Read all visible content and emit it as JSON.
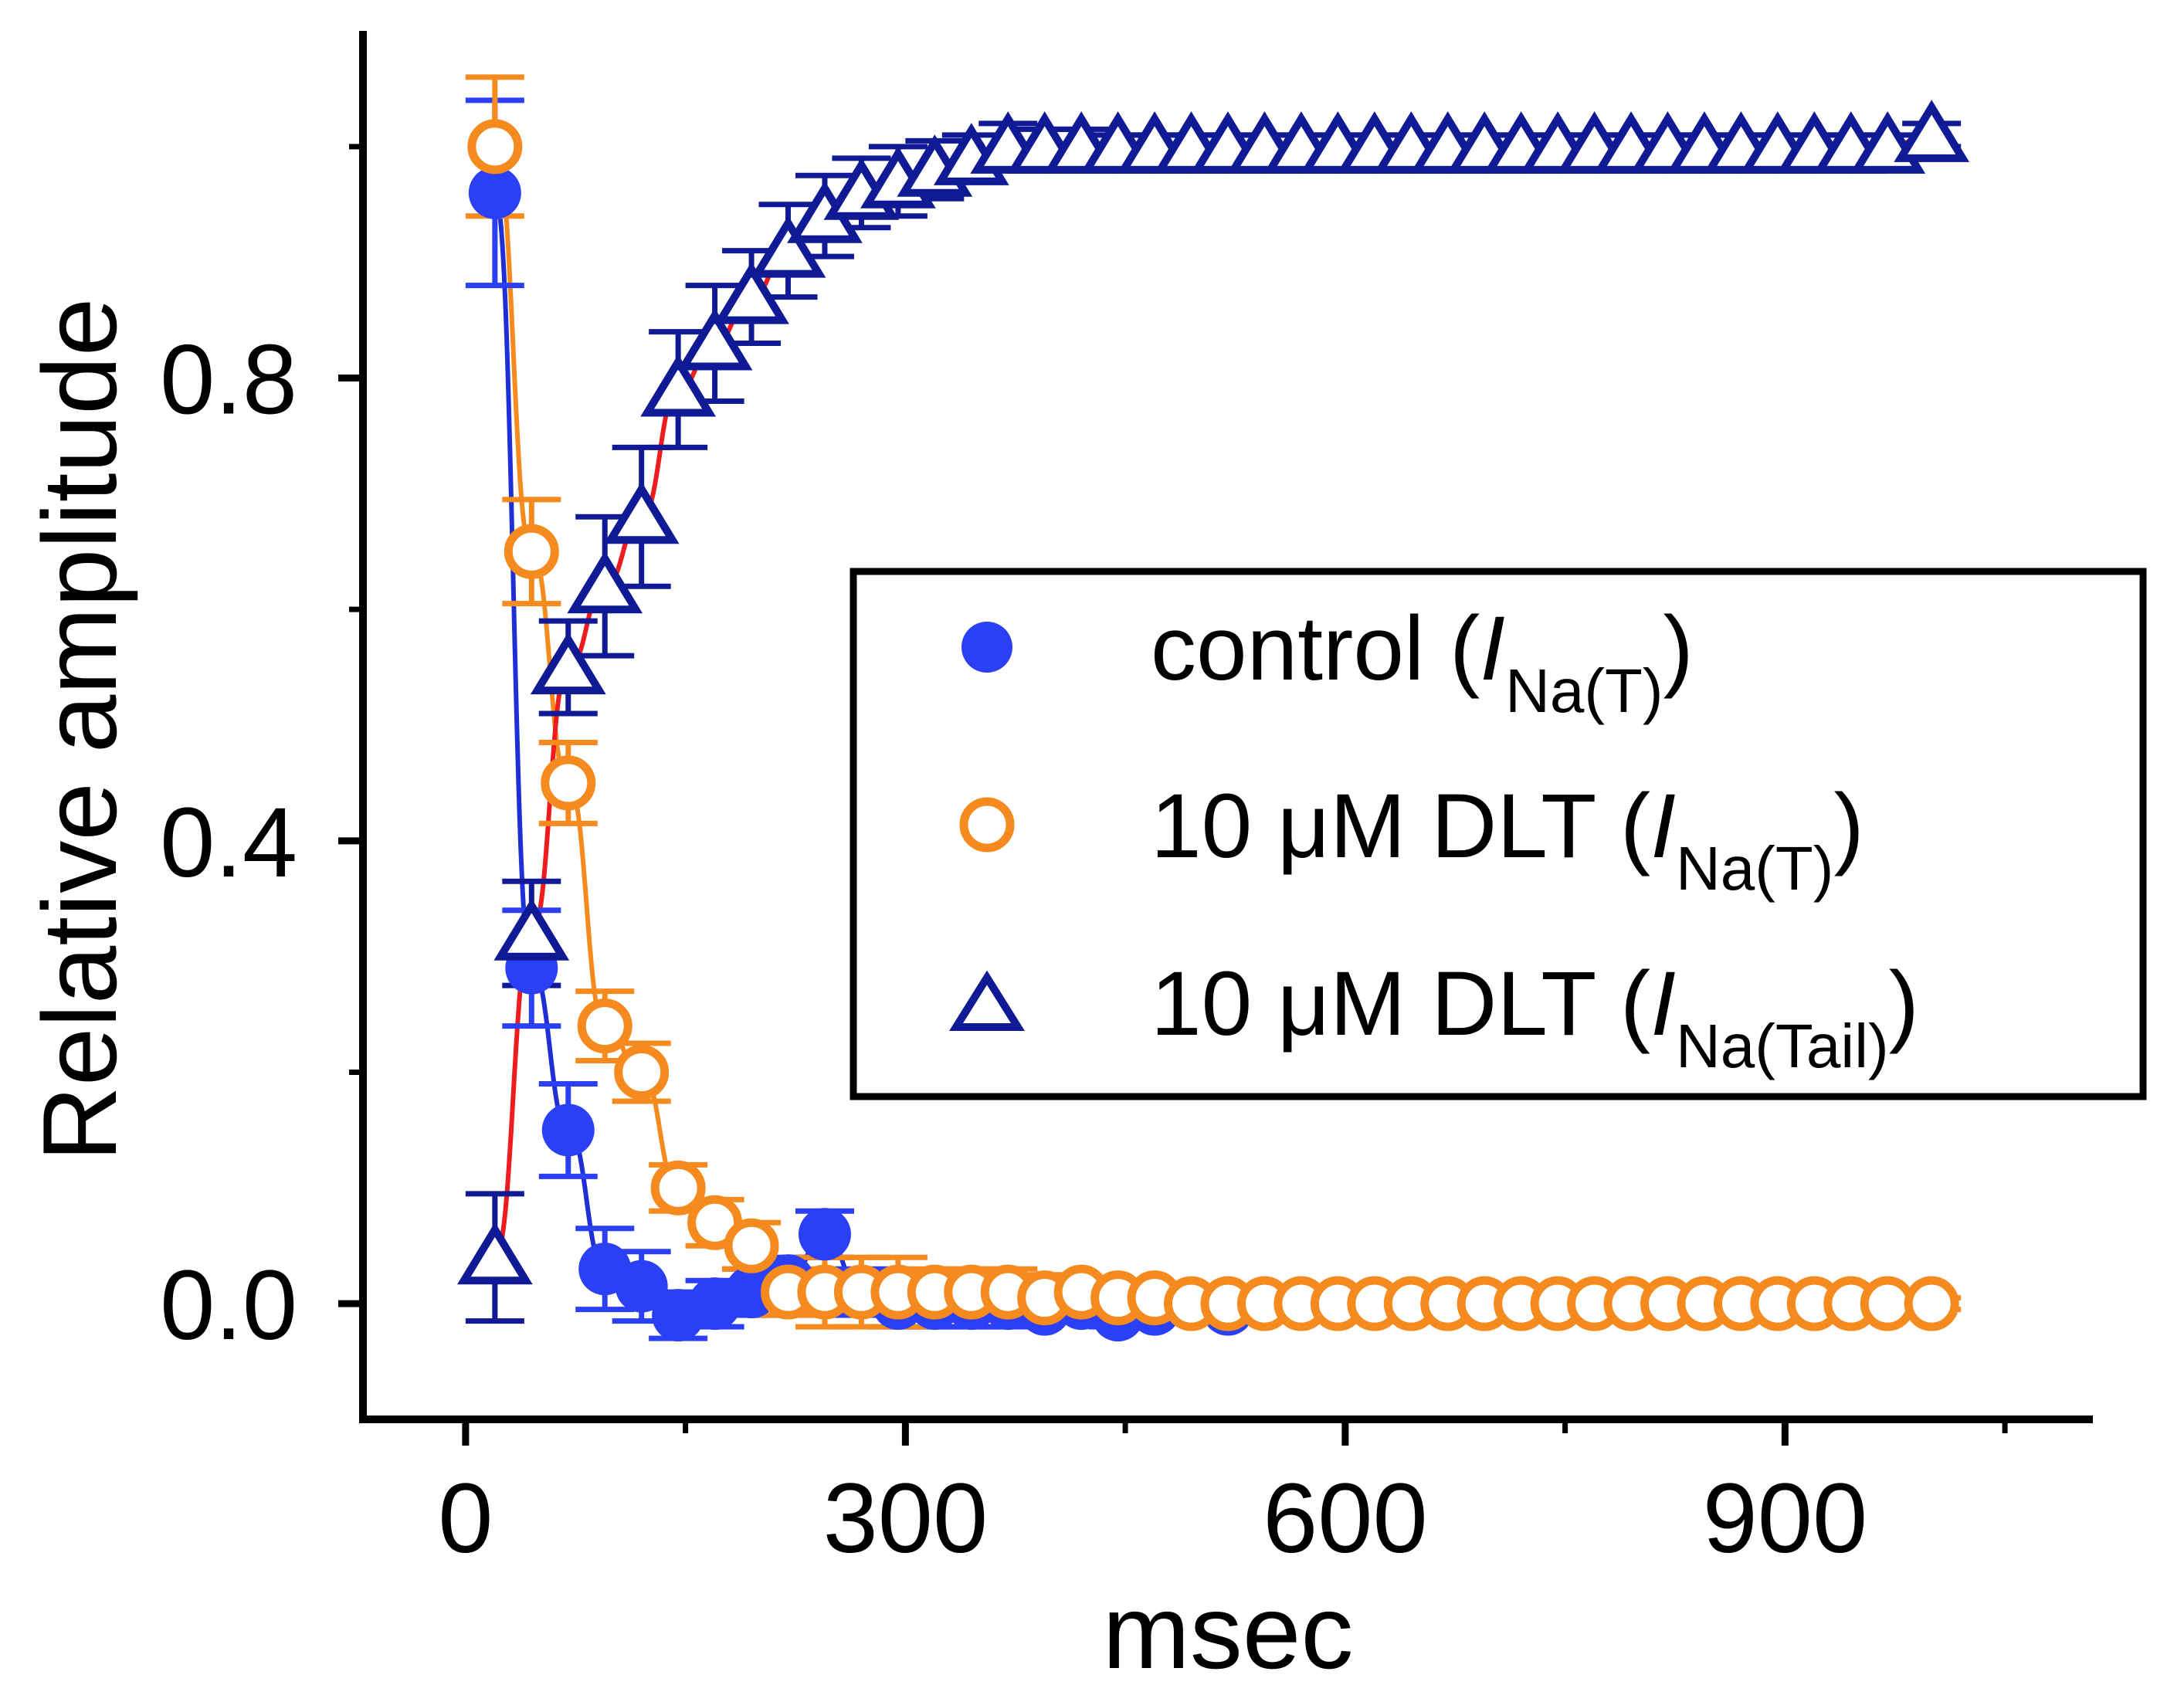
{
  "chart_data": {
    "type": "scatter",
    "title": "",
    "xlabel": "msec",
    "ylabel": "Relative amplitude",
    "xlim": [
      -70,
      1110
    ],
    "ylim": [
      -0.1,
      1.1
    ],
    "xticks": [
      0,
      300,
      600,
      900
    ],
    "xtick_labels": [
      "0",
      "300",
      "600",
      "900"
    ],
    "yticks": [
      0.0,
      0.4,
      0.8
    ],
    "ytick_labels": [
      "0.0",
      "0.4",
      "0.8"
    ],
    "grid": false,
    "legend_position": "center-right",
    "series": [
      {
        "key": "control",
        "label_main": "control (",
        "label_italic": "I",
        "label_sub": "Na(T)",
        "label_close": ")",
        "marker": "filled-circle",
        "color": "#2b3ff5",
        "fit_color": "#1f2fd6",
        "x": [
          20,
          45,
          70,
          95,
          120,
          145,
          170,
          195,
          220,
          245,
          270,
          295,
          320,
          345,
          370,
          395,
          420,
          445,
          470,
          495,
          520
        ],
        "y": [
          0.96,
          0.29,
          0.15,
          0.03,
          0.015,
          -0.01,
          0.0,
          0.01,
          0.02,
          0.06,
          0.01,
          0.0,
          0.0,
          0.0,
          0.0,
          -0.005,
          0.0,
          -0.01,
          -0.005,
          0.0,
          -0.005
        ],
        "err": [
          0.08,
          0.05,
          0.04,
          0.035,
          0.03,
          0.02,
          0.02,
          0.02,
          0.02,
          0.02,
          0.02,
          0.02,
          0.02,
          0.02,
          0.02,
          0.01,
          0.01,
          0.01,
          0.01,
          0.01,
          0.01
        ]
      },
      {
        "key": "dlt",
        "label_main": "10 μM DLT (",
        "label_italic": "I",
        "label_sub": "Na(T)",
        "label_close": ")",
        "marker": "open-circle",
        "color": "#f58a1f",
        "fit_color": "#f58a1f",
        "x": [
          20,
          45,
          70,
          95,
          120,
          145,
          170,
          195,
          220,
          245,
          270,
          295,
          320,
          345,
          370,
          395,
          420,
          445,
          470,
          495,
          520,
          545,
          570,
          595,
          620,
          645,
          670,
          695,
          720,
          745,
          770,
          795,
          820,
          845,
          870,
          895,
          920,
          945,
          970,
          1000
        ],
        "y": [
          1.0,
          0.65,
          0.45,
          0.24,
          0.2,
          0.1,
          0.07,
          0.05,
          0.01,
          0.01,
          0.01,
          0.01,
          0.01,
          0.01,
          0.01,
          0.005,
          0.01,
          0.005,
          0.005,
          0.0,
          0.0,
          0.0,
          0.0,
          0.0,
          0.0,
          0.0,
          0.0,
          0.0,
          0.0,
          0.0,
          0.0,
          0.0,
          0.0,
          0.0,
          0.0,
          0.0,
          0.0,
          0.0,
          0.0,
          0.0
        ],
        "err": [
          0.06,
          0.045,
          0.035,
          0.03,
          0.025,
          0.02,
          0.02,
          0.02,
          0.02,
          0.03,
          0.03,
          0.03,
          0.02,
          0.02,
          0.02,
          0.02,
          0.01,
          0.01,
          0.01,
          0.01,
          0.01,
          0.005,
          0.005,
          0.005,
          0.005,
          0.005,
          0.005,
          0.005,
          0.005,
          0.005,
          0.005,
          0.005,
          0.005,
          0.005,
          0.005,
          0.005,
          0.005,
          0.005,
          0.005,
          0.005
        ]
      },
      {
        "key": "tail",
        "label_main": "10 μM DLT (",
        "label_italic": "I",
        "label_sub": "Na(Tail)",
        "label_close": ")",
        "marker": "open-triangle",
        "color": "#0f1a94",
        "fit_color": "#ee1c1c",
        "x": [
          20,
          45,
          70,
          95,
          120,
          145,
          170,
          195,
          220,
          245,
          270,
          295,
          320,
          345,
          370,
          395,
          420,
          445,
          470,
          495,
          520,
          545,
          570,
          595,
          620,
          645,
          670,
          695,
          720,
          745,
          770,
          795,
          820,
          845,
          870,
          895,
          920,
          945,
          970,
          1000
        ],
        "y": [
          0.04,
          0.32,
          0.55,
          0.62,
          0.68,
          0.79,
          0.83,
          0.87,
          0.91,
          0.94,
          0.96,
          0.97,
          0.98,
          0.99,
          1.0,
          1.0,
          1.0,
          1.0,
          1.0,
          1.0,
          1.0,
          1.0,
          1.0,
          1.0,
          1.0,
          1.0,
          1.0,
          1.0,
          1.0,
          1.0,
          1.0,
          1.0,
          1.0,
          1.0,
          1.0,
          1.0,
          1.0,
          1.0,
          1.0,
          1.01
        ],
        "err": [
          0.055,
          0.045,
          0.04,
          0.06,
          0.06,
          0.05,
          0.05,
          0.04,
          0.04,
          0.035,
          0.03,
          0.03,
          0.025,
          0.02,
          0.02,
          0.015,
          0.015,
          0.01,
          0.01,
          0.01,
          0.01,
          0.01,
          0.01,
          0.01,
          0.01,
          0.01,
          0.01,
          0.01,
          0.01,
          0.01,
          0.01,
          0.01,
          0.01,
          0.01,
          0.01,
          0.01,
          0.01,
          0.01,
          0.01,
          0.01
        ]
      }
    ]
  }
}
